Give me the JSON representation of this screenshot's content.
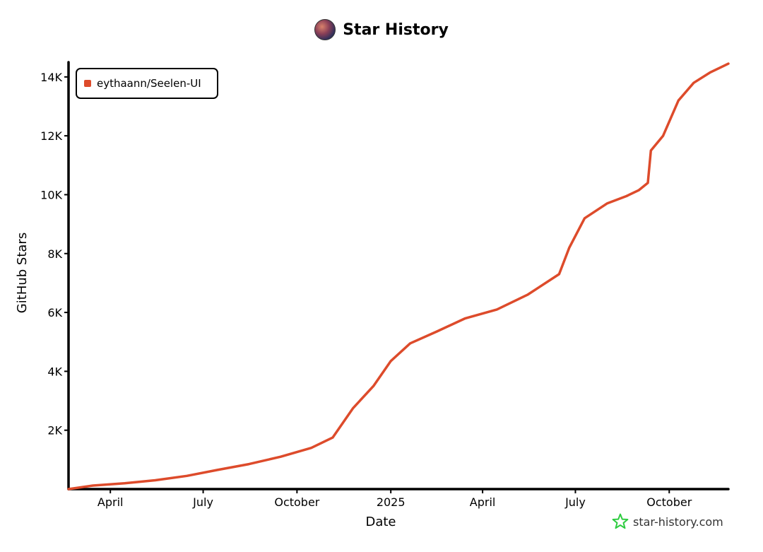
{
  "header": {
    "title": "Star History",
    "avatar_icon": "repo-avatar-icon"
  },
  "watermark": {
    "text": "star-history.com",
    "icon": "star-outline-icon",
    "icon_color": "#2ecc40"
  },
  "chart_data": {
    "type": "line",
    "title": "Star History",
    "xlabel": "Date",
    "ylabel": "GitHub Stars",
    "xlim": [
      "2024-02-20",
      "2025-11-28"
    ],
    "ylim": [
      0,
      14500
    ],
    "x_ticks": [
      {
        "date": "2024-04-01",
        "label": "April"
      },
      {
        "date": "2024-07-01",
        "label": "July"
      },
      {
        "date": "2024-10-01",
        "label": "October"
      },
      {
        "date": "2025-01-01",
        "label": "2025"
      },
      {
        "date": "2025-04-01",
        "label": "April"
      },
      {
        "date": "2025-07-01",
        "label": "July"
      },
      {
        "date": "2025-10-01",
        "label": "October"
      }
    ],
    "y_ticks": [
      {
        "value": 2000,
        "label": "2K"
      },
      {
        "value": 4000,
        "label": "4K"
      },
      {
        "value": 6000,
        "label": "6K"
      },
      {
        "value": 8000,
        "label": "8K"
      },
      {
        "value": 10000,
        "label": "10K"
      },
      {
        "value": 12000,
        "label": "12K"
      },
      {
        "value": 14000,
        "label": "14K"
      }
    ],
    "grid": false,
    "legend": "top-left",
    "series": [
      {
        "name": "eythaann/Seelen-UI",
        "color": "#dd4b2b",
        "points": [
          [
            "2024-02-20",
            0
          ],
          [
            "2024-03-15",
            120
          ],
          [
            "2024-04-15",
            200
          ],
          [
            "2024-05-15",
            300
          ],
          [
            "2024-06-15",
            450
          ],
          [
            "2024-07-15",
            650
          ],
          [
            "2024-08-15",
            850
          ],
          [
            "2024-09-15",
            1100
          ],
          [
            "2024-10-15",
            1400
          ],
          [
            "2024-11-05",
            1750
          ],
          [
            "2024-11-25",
            2750
          ],
          [
            "2024-12-15",
            3500
          ],
          [
            "2025-01-01",
            4350
          ],
          [
            "2025-01-20",
            4950
          ],
          [
            "2025-02-15",
            5350
          ],
          [
            "2025-03-15",
            5800
          ],
          [
            "2025-04-15",
            6100
          ],
          [
            "2025-05-15",
            6600
          ],
          [
            "2025-06-15",
            7300
          ],
          [
            "2025-06-25",
            8200
          ],
          [
            "2025-07-10",
            9200
          ],
          [
            "2025-08-01",
            9700
          ],
          [
            "2025-08-20",
            9950
          ],
          [
            "2025-09-01",
            10150
          ],
          [
            "2025-09-10",
            10400
          ],
          [
            "2025-09-13",
            11500
          ],
          [
            "2025-09-25",
            12000
          ],
          [
            "2025-10-10",
            13200
          ],
          [
            "2025-10-25",
            13800
          ],
          [
            "2025-11-10",
            14150
          ],
          [
            "2025-11-28",
            14450
          ]
        ]
      }
    ]
  }
}
